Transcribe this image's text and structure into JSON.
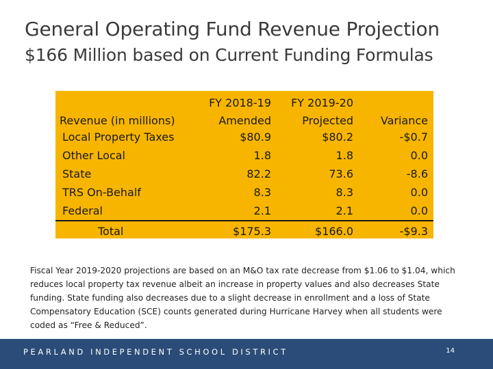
{
  "slide": {
    "title": "General Operating Fund Revenue Projection",
    "subtitle": "$166 Million based on Current Funding Formulas"
  },
  "table": {
    "header_row1": [
      "",
      "FY 2018-19",
      "FY 2019-20",
      ""
    ],
    "header_row2": [
      "Revenue (in millions)",
      "Amended",
      "Projected",
      "Variance"
    ],
    "rows": [
      [
        "Local Property Taxes",
        "$80.9",
        "$80.2",
        "-$0.7"
      ],
      [
        "Other Local",
        "1.8",
        "1.8",
        "0.0"
      ],
      [
        "State",
        "82.2",
        "73.6",
        "-8.6"
      ],
      [
        "TRS On-Behalf",
        "8.3",
        "8.3",
        "0.0"
      ],
      [
        "Federal",
        "2.1",
        "2.1",
        "0.0"
      ]
    ],
    "total": [
      "Total",
      "$175.3",
      "$166.0",
      "-$9.3"
    ],
    "background_color": "#f7b500"
  },
  "note": "Fiscal Year 2019-2020 projections are based on an M&O tax rate decrease from $1.06 to $1.04, which reduces local property tax revenue albeit an increase in property values and also decreases State funding.  State funding also decreases due to a slight decrease in enrollment and a loss of State Compensatory Education (SCE) counts generated during Hurricane Harvey when all students were coded as “Free & Reduced”.",
  "footer": {
    "org": "PEARLAND INDEPENDENT SCHOOL DISTRICT",
    "page_number": "14",
    "background_color": "#2b4c78"
  }
}
